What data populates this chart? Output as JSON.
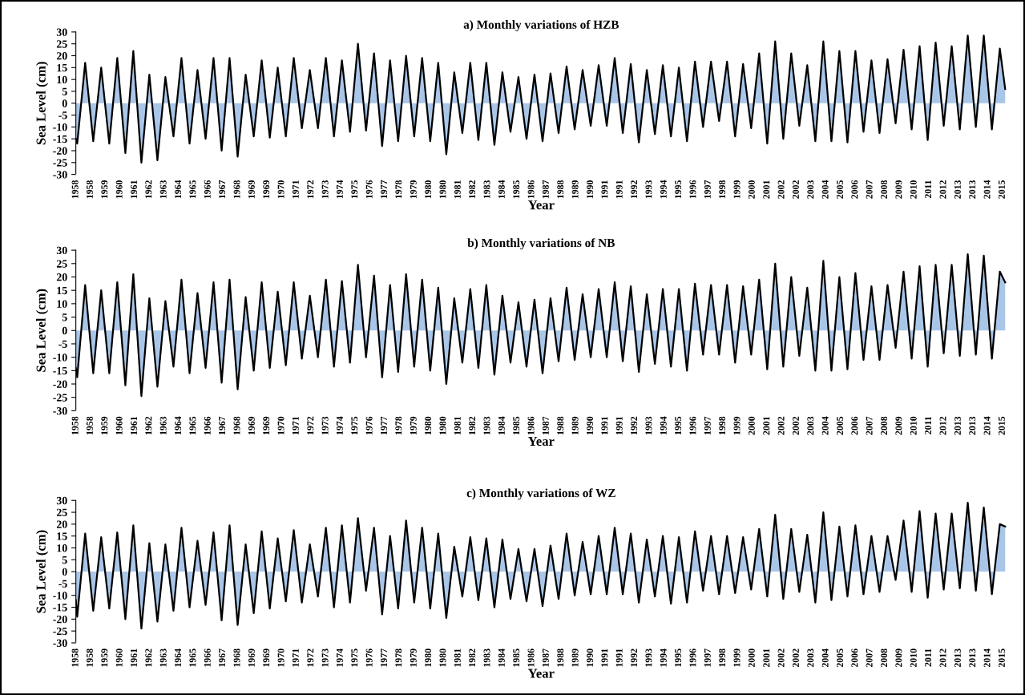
{
  "chart_data": [
    {
      "type": "area",
      "title": "a) Monthly variations of HZB",
      "xlabel": "Year",
      "ylabel": "Sea Level (cm)",
      "x": [
        "1958-01",
        "1958-02",
        "1958-08",
        "1959-02",
        "1959-08",
        "1960-02",
        "1960-08",
        "1961-02",
        "1961-08",
        "1962-02",
        "1962-08",
        "1963-02",
        "1963-08",
        "1964-02",
        "1964-08",
        "1965-02",
        "1965-08",
        "1966-02",
        "1966-08",
        "1967-02",
        "1967-08",
        "1968-02",
        "1968-08",
        "1969-02",
        "1969-08",
        "1970-02",
        "1970-08",
        "1971-02",
        "1971-08",
        "1972-02",
        "1972-08",
        "1973-02",
        "1973-08",
        "1974-02",
        "1974-08",
        "1975-02",
        "1975-08",
        "1976-02",
        "1976-08",
        "1977-02",
        "1977-08",
        "1978-02",
        "1978-08",
        "1979-02",
        "1979-08",
        "1980-02",
        "1980-08",
        "1981-02",
        "1981-08",
        "1982-02",
        "1982-08",
        "1983-02",
        "1983-08",
        "1984-02",
        "1984-08",
        "1985-02",
        "1985-08",
        "1986-02",
        "1986-08",
        "1987-02",
        "1987-08",
        "1988-02",
        "1988-08",
        "1989-02",
        "1989-08",
        "1990-02",
        "1990-08",
        "1991-02",
        "1991-08",
        "1992-02",
        "1992-08",
        "1993-02",
        "1993-08",
        "1994-02",
        "1994-08",
        "1995-02",
        "1995-08",
        "1996-02",
        "1996-08",
        "1997-02",
        "1997-08",
        "1998-02",
        "1998-08",
        "1999-02",
        "1999-08",
        "2000-02",
        "2000-08",
        "2001-02",
        "2001-08",
        "2002-02",
        "2002-08",
        "2003-02",
        "2003-08",
        "2004-02",
        "2004-08",
        "2005-02",
        "2005-08",
        "2006-02",
        "2006-08",
        "2007-02",
        "2007-08",
        "2008-02",
        "2008-08",
        "2009-02",
        "2009-08",
        "2010-02",
        "2010-08",
        "2011-02",
        "2011-08",
        "2012-02",
        "2012-08",
        "2013-02",
        "2013-08",
        "2014-02",
        "2014-08",
        "2015-02",
        "2015-08",
        "2015-12"
      ],
      "series": [
        {
          "color": "#a9c6e8",
          "values": [
            -15,
            -17,
            17,
            -16,
            15,
            -17,
            19,
            -21,
            22,
            -25,
            12,
            -24,
            11,
            -14,
            19,
            -17,
            14,
            -15,
            19,
            -20,
            19,
            -22.5,
            12,
            -14,
            18,
            -14.5,
            15,
            -14,
            19,
            -10.5,
            14,
            -10.5,
            19,
            -14,
            18,
            -12,
            25,
            -11.5,
            21,
            -18,
            18,
            -16,
            20,
            -14,
            19,
            -16,
            17,
            -21.5,
            13,
            -12.5,
            17,
            -15.5,
            17,
            -17.5,
            13,
            -12,
            11,
            -15,
            12,
            -16,
            12.5,
            -12.5,
            15.5,
            -11,
            14,
            -9.5,
            16,
            -9.5,
            19,
            -12.5,
            16.5,
            -16.5,
            14,
            -13,
            16,
            -14,
            15,
            -16,
            17.5,
            -10,
            17.5,
            -7.5,
            17.5,
            -14,
            16.5,
            -10.5,
            21,
            -17,
            26,
            -15,
            21,
            -9.5,
            16,
            -16,
            26,
            -16,
            22,
            -16.5,
            22,
            -12,
            18,
            -12.5,
            18.5,
            -8.5,
            22.5,
            -11,
            24,
            -15.5,
            25.5,
            -9.5,
            24,
            -11,
            28.5,
            -10,
            28.5,
            -11,
            23,
            6
          ]
        }
      ],
      "xlim": [
        "1958-01",
        "2016-01"
      ],
      "xticks": [
        {
          "value": "1958-01",
          "label": "1958"
        },
        {
          "value": "1958-12",
          "label": "1958"
        },
        {
          "value": "1959-11",
          "label": "1959"
        },
        {
          "value": "1960-10",
          "label": "1960"
        },
        {
          "value": "1961-09",
          "label": "1961"
        },
        {
          "value": "1962-08",
          "label": "1962"
        },
        {
          "value": "1963-07",
          "label": "1963"
        },
        {
          "value": "1964-06",
          "label": "1964"
        },
        {
          "value": "1965-05",
          "label": "1965"
        },
        {
          "value": "1966-04",
          "label": "1966"
        },
        {
          "value": "1967-03",
          "label": "1967"
        },
        {
          "value": "1968-02",
          "label": "1968"
        },
        {
          "value": "1969-01",
          "label": "1969"
        },
        {
          "value": "1969-12",
          "label": "1969"
        },
        {
          "value": "1970-11",
          "label": "1970"
        },
        {
          "value": "1971-10",
          "label": "1971"
        },
        {
          "value": "1972-09",
          "label": "1972"
        },
        {
          "value": "1973-08",
          "label": "1973"
        },
        {
          "value": "1974-07",
          "label": "1974"
        },
        {
          "value": "1975-06",
          "label": "1975"
        },
        {
          "value": "1976-05",
          "label": "1976"
        },
        {
          "value": "1977-04",
          "label": "1977"
        },
        {
          "value": "1978-03",
          "label": "1978"
        },
        {
          "value": "1979-02",
          "label": "1979"
        },
        {
          "value": "1980-01",
          "label": "1980"
        },
        {
          "value": "1980-12",
          "label": "1980"
        },
        {
          "value": "1981-11",
          "label": "1981"
        },
        {
          "value": "1982-10",
          "label": "1982"
        },
        {
          "value": "1983-09",
          "label": "1983"
        },
        {
          "value": "1984-08",
          "label": "1984"
        },
        {
          "value": "1985-07",
          "label": "1985"
        },
        {
          "value": "1986-06",
          "label": "1986"
        },
        {
          "value": "1987-05",
          "label": "1987"
        },
        {
          "value": "1988-04",
          "label": "1988"
        },
        {
          "value": "1989-03",
          "label": "1989"
        },
        {
          "value": "1990-02",
          "label": "1990"
        },
        {
          "value": "1991-01",
          "label": "1991"
        },
        {
          "value": "1991-12",
          "label": "1991"
        },
        {
          "value": "1992-11",
          "label": "1992"
        },
        {
          "value": "1993-10",
          "label": "1993"
        },
        {
          "value": "1994-09",
          "label": "1994"
        },
        {
          "value": "1995-08",
          "label": "1995"
        },
        {
          "value": "1996-07",
          "label": "1996"
        },
        {
          "value": "1997-06",
          "label": "1997"
        },
        {
          "value": "1998-05",
          "label": "1998"
        },
        {
          "value": "1999-04",
          "label": "1999"
        },
        {
          "value": "2000-03",
          "label": "2000"
        },
        {
          "value": "2001-02",
          "label": "2001"
        },
        {
          "value": "2002-01",
          "label": "2002"
        },
        {
          "value": "2002-12",
          "label": "2002"
        },
        {
          "value": "2003-11",
          "label": "2003"
        },
        {
          "value": "2004-10",
          "label": "2004"
        },
        {
          "value": "2005-09",
          "label": "2005"
        },
        {
          "value": "2006-08",
          "label": "2006"
        },
        {
          "value": "2007-07",
          "label": "2007"
        },
        {
          "value": "2008-06",
          "label": "2008"
        },
        {
          "value": "2009-05",
          "label": "2009"
        },
        {
          "value": "2010-04",
          "label": "2010"
        },
        {
          "value": "2011-03",
          "label": "2011"
        },
        {
          "value": "2012-02",
          "label": "2012"
        },
        {
          "value": "2013-01",
          "label": "2013"
        },
        {
          "value": "2013-12",
          "label": "2013"
        },
        {
          "value": "2014-11",
          "label": "2014"
        },
        {
          "value": "2015-10",
          "label": "2015"
        }
      ],
      "ylim": [
        -30,
        30
      ],
      "yticks": [
        -30,
        -25,
        -20,
        -15,
        -10,
        -5,
        0,
        5,
        10,
        15,
        20,
        25,
        30
      ]
    },
    {
      "type": "area",
      "title": "b) Monthly variations of NB",
      "xlabel": "Year",
      "ylabel": "Sea Level (cm)",
      "x": [
        "1958-01",
        "1958-02",
        "1958-08",
        "1959-02",
        "1959-08",
        "1960-02",
        "1960-08",
        "1961-02",
        "1961-08",
        "1962-02",
        "1962-08",
        "1963-02",
        "1963-08",
        "1964-02",
        "1964-08",
        "1965-02",
        "1965-08",
        "1966-02",
        "1966-08",
        "1967-02",
        "1967-08",
        "1968-02",
        "1968-08",
        "1969-02",
        "1969-08",
        "1970-02",
        "1970-08",
        "1971-02",
        "1971-08",
        "1972-02",
        "1972-08",
        "1973-02",
        "1973-08",
        "1974-02",
        "1974-08",
        "1975-02",
        "1975-08",
        "1976-02",
        "1976-08",
        "1977-02",
        "1977-08",
        "1978-02",
        "1978-08",
        "1979-02",
        "1979-08",
        "1980-02",
        "1980-08",
        "1981-02",
        "1981-08",
        "1982-02",
        "1982-08",
        "1983-02",
        "1983-08",
        "1984-02",
        "1984-08",
        "1985-02",
        "1985-08",
        "1986-02",
        "1986-08",
        "1987-02",
        "1987-08",
        "1988-02",
        "1988-08",
        "1989-02",
        "1989-08",
        "1990-02",
        "1990-08",
        "1991-02",
        "1991-08",
        "1992-02",
        "1992-08",
        "1993-02",
        "1993-08",
        "1994-02",
        "1994-08",
        "1995-02",
        "1995-08",
        "1996-02",
        "1996-08",
        "1997-02",
        "1997-08",
        "1998-02",
        "1998-08",
        "1999-02",
        "1999-08",
        "2000-02",
        "2000-08",
        "2001-02",
        "2001-08",
        "2002-02",
        "2002-08",
        "2003-02",
        "2003-08",
        "2004-02",
        "2004-08",
        "2005-02",
        "2005-08",
        "2006-02",
        "2006-08",
        "2007-02",
        "2007-08",
        "2008-02",
        "2008-08",
        "2009-02",
        "2009-08",
        "2010-02",
        "2010-08",
        "2011-02",
        "2011-08",
        "2012-02",
        "2012-08",
        "2013-02",
        "2013-08",
        "2014-02",
        "2014-08",
        "2015-02",
        "2015-08",
        "2015-12"
      ],
      "series": [
        {
          "color": "#a9c6e8",
          "values": [
            -14,
            -17.5,
            17,
            -16,
            15,
            -16,
            18,
            -20.5,
            21,
            -24.5,
            12,
            -21,
            11,
            -13.5,
            19,
            -16,
            14,
            -14,
            18,
            -19.5,
            19,
            -22,
            12.5,
            -15,
            18,
            -14,
            14.5,
            -13,
            18,
            -10.5,
            13,
            -10,
            19,
            -13.5,
            18.5,
            -12,
            24.5,
            -10,
            20.5,
            -17.5,
            17,
            -15.5,
            21,
            -13.5,
            19,
            -15,
            16,
            -20,
            12,
            -12,
            15.5,
            -14,
            17,
            -16.5,
            13,
            -12,
            10.5,
            -13.5,
            11.5,
            -16,
            12,
            -11.5,
            16,
            -11,
            13.5,
            -10,
            15.5,
            -10,
            18,
            -11.5,
            16.5,
            -15.5,
            13.5,
            -12.5,
            15.5,
            -13.5,
            15.5,
            -15,
            17.5,
            -9,
            17,
            -9,
            17,
            -12,
            16.5,
            -9,
            19,
            -14.5,
            25,
            -13.5,
            20,
            -9.5,
            16,
            -15,
            26,
            -15,
            20,
            -14.5,
            21.5,
            -11,
            16.5,
            -11,
            17,
            -6.5,
            22,
            -10.5,
            24,
            -13.5,
            24.5,
            -8.5,
            24.5,
            -9.5,
            28.5,
            -9,
            28,
            -10.5,
            22,
            18
          ]
        }
      ],
      "xlim": [
        "1958-01",
        "2016-01"
      ],
      "xticks": [
        {
          "value": "1958-01",
          "label": "1958"
        },
        {
          "value": "1958-12",
          "label": "1958"
        },
        {
          "value": "1959-11",
          "label": "1959"
        },
        {
          "value": "1960-10",
          "label": "1960"
        },
        {
          "value": "1961-09",
          "label": "1961"
        },
        {
          "value": "1962-08",
          "label": "1962"
        },
        {
          "value": "1963-07",
          "label": "1963"
        },
        {
          "value": "1964-06",
          "label": "1964"
        },
        {
          "value": "1965-05",
          "label": "1965"
        },
        {
          "value": "1966-04",
          "label": "1966"
        },
        {
          "value": "1967-03",
          "label": "1967"
        },
        {
          "value": "1968-02",
          "label": "1968"
        },
        {
          "value": "1969-01",
          "label": "1969"
        },
        {
          "value": "1969-12",
          "label": "1969"
        },
        {
          "value": "1970-11",
          "label": "1970"
        },
        {
          "value": "1971-10",
          "label": "1971"
        },
        {
          "value": "1972-09",
          "label": "1972"
        },
        {
          "value": "1973-08",
          "label": "1973"
        },
        {
          "value": "1974-07",
          "label": "1974"
        },
        {
          "value": "1975-06",
          "label": "1975"
        },
        {
          "value": "1976-05",
          "label": "1976"
        },
        {
          "value": "1977-04",
          "label": "1977"
        },
        {
          "value": "1978-03",
          "label": "1978"
        },
        {
          "value": "1979-02",
          "label": "1979"
        },
        {
          "value": "1980-01",
          "label": "1980"
        },
        {
          "value": "1980-12",
          "label": "1980"
        },
        {
          "value": "1981-11",
          "label": "1981"
        },
        {
          "value": "1982-10",
          "label": "1982"
        },
        {
          "value": "1983-09",
          "label": "1983"
        },
        {
          "value": "1984-08",
          "label": "1984"
        },
        {
          "value": "1985-07",
          "label": "1985"
        },
        {
          "value": "1986-06",
          "label": "1986"
        },
        {
          "value": "1987-05",
          "label": "1987"
        },
        {
          "value": "1988-04",
          "label": "1988"
        },
        {
          "value": "1989-03",
          "label": "1989"
        },
        {
          "value": "1990-02",
          "label": "1990"
        },
        {
          "value": "1991-01",
          "label": "1991"
        },
        {
          "value": "1991-12",
          "label": "1991"
        },
        {
          "value": "1992-11",
          "label": "1992"
        },
        {
          "value": "1993-10",
          "label": "1993"
        },
        {
          "value": "1994-09",
          "label": "1994"
        },
        {
          "value": "1995-08",
          "label": "1995"
        },
        {
          "value": "1996-07",
          "label": "1996"
        },
        {
          "value": "1997-06",
          "label": "1997"
        },
        {
          "value": "1998-05",
          "label": "1998"
        },
        {
          "value": "1999-04",
          "label": "1999"
        },
        {
          "value": "2000-03",
          "label": "2000"
        },
        {
          "value": "2001-02",
          "label": "2001"
        },
        {
          "value": "2002-01",
          "label": "2002"
        },
        {
          "value": "2002-12",
          "label": "2002"
        },
        {
          "value": "2003-11",
          "label": "2003"
        },
        {
          "value": "2004-10",
          "label": "2004"
        },
        {
          "value": "2005-09",
          "label": "2005"
        },
        {
          "value": "2006-08",
          "label": "2006"
        },
        {
          "value": "2007-07",
          "label": "2007"
        },
        {
          "value": "2008-06",
          "label": "2008"
        },
        {
          "value": "2009-05",
          "label": "2009"
        },
        {
          "value": "2010-04",
          "label": "2010"
        },
        {
          "value": "2011-03",
          "label": "2011"
        },
        {
          "value": "2012-02",
          "label": "2012"
        },
        {
          "value": "2013-01",
          "label": "2013"
        },
        {
          "value": "2013-12",
          "label": "2013"
        },
        {
          "value": "2014-11",
          "label": "2014"
        },
        {
          "value": "2015-10",
          "label": "2015"
        }
      ],
      "ylim": [
        -30,
        30
      ],
      "yticks": [
        -30,
        -25,
        -20,
        -15,
        -10,
        -5,
        0,
        5,
        10,
        15,
        20,
        25,
        30
      ]
    },
    {
      "type": "area",
      "title": "c) Monthly variations of WZ",
      "xlabel": "Year",
      "ylabel": "Sea Level (cm)",
      "x": [
        "1958-01",
        "1958-02",
        "1958-08",
        "1959-02",
        "1959-08",
        "1960-02",
        "1960-08",
        "1961-02",
        "1961-08",
        "1962-02",
        "1962-08",
        "1963-02",
        "1963-08",
        "1964-02",
        "1964-08",
        "1965-02",
        "1965-08",
        "1966-02",
        "1966-08",
        "1967-02",
        "1967-08",
        "1968-02",
        "1968-08",
        "1969-02",
        "1969-08",
        "1970-02",
        "1970-08",
        "1971-02",
        "1971-08",
        "1972-02",
        "1972-08",
        "1973-02",
        "1973-08",
        "1974-02",
        "1974-08",
        "1975-02",
        "1975-08",
        "1976-02",
        "1976-08",
        "1977-02",
        "1977-08",
        "1978-02",
        "1978-08",
        "1979-02",
        "1979-08",
        "1980-02",
        "1980-08",
        "1981-02",
        "1981-08",
        "1982-02",
        "1982-08",
        "1983-02",
        "1983-08",
        "1984-02",
        "1984-08",
        "1985-02",
        "1985-08",
        "1986-02",
        "1986-08",
        "1987-02",
        "1987-08",
        "1988-02",
        "1988-08",
        "1989-02",
        "1989-08",
        "1990-02",
        "1990-08",
        "1991-02",
        "1991-08",
        "1992-02",
        "1992-08",
        "1993-02",
        "1993-08",
        "1994-02",
        "1994-08",
        "1995-02",
        "1995-08",
        "1996-02",
        "1996-08",
        "1997-02",
        "1997-08",
        "1998-02",
        "1998-08",
        "1999-02",
        "1999-08",
        "2000-02",
        "2000-08",
        "2001-02",
        "2001-08",
        "2002-02",
        "2002-08",
        "2003-02",
        "2003-08",
        "2004-02",
        "2004-08",
        "2005-02",
        "2005-08",
        "2006-02",
        "2006-08",
        "2007-02",
        "2007-08",
        "2008-02",
        "2008-08",
        "2009-02",
        "2009-08",
        "2010-02",
        "2010-08",
        "2011-02",
        "2011-08",
        "2012-02",
        "2012-08",
        "2013-02",
        "2013-08",
        "2014-02",
        "2014-08",
        "2015-02",
        "2015-08",
        "2015-12"
      ],
      "series": [
        {
          "color": "#a9c6e8",
          "values": [
            -12,
            -19,
            16,
            -16.5,
            14.5,
            -15.5,
            16.5,
            -20,
            19.5,
            -24,
            12,
            -21,
            11.5,
            -16.5,
            18.5,
            -15,
            13,
            -14,
            16.5,
            -20.5,
            19.5,
            -22.5,
            11.5,
            -17.5,
            17,
            -15.5,
            14,
            -12.5,
            17.5,
            -13,
            11.5,
            -10.5,
            18.5,
            -15,
            19.5,
            -13,
            22.5,
            -8,
            18.5,
            -18,
            15,
            -15.5,
            21.5,
            -13,
            18.5,
            -15.5,
            16,
            -19.5,
            10.5,
            -10.5,
            14.5,
            -12,
            14,
            -15,
            13.5,
            -11.5,
            9.5,
            -12.5,
            9.5,
            -14.5,
            11,
            -11.5,
            16,
            -10,
            12.5,
            -9.5,
            15,
            -9.5,
            18.5,
            -9.5,
            16,
            -13,
            13.5,
            -10.5,
            15,
            -13.5,
            14.5,
            -13,
            17,
            -8,
            15,
            -9.5,
            15,
            -9,
            14.5,
            -7.5,
            18,
            -10.5,
            24,
            -11.5,
            18,
            -8.5,
            15.5,
            -13,
            25,
            -12,
            19,
            -10.5,
            19.5,
            -9.5,
            15,
            -8.5,
            15,
            -3.5,
            21.5,
            -8.5,
            25.5,
            -11,
            24.5,
            -7.5,
            24.5,
            -7,
            29,
            -8,
            27,
            -9.5,
            20,
            19
          ]
        }
      ],
      "xlim": [
        "1958-01",
        "2016-01"
      ],
      "xticks": [
        {
          "value": "1958-01",
          "label": "1958"
        },
        {
          "value": "1958-12",
          "label": "1958"
        },
        {
          "value": "1959-11",
          "label": "1959"
        },
        {
          "value": "1960-10",
          "label": "1960"
        },
        {
          "value": "1961-09",
          "label": "1961"
        },
        {
          "value": "1962-08",
          "label": "1962"
        },
        {
          "value": "1963-07",
          "label": "1963"
        },
        {
          "value": "1964-06",
          "label": "1964"
        },
        {
          "value": "1965-05",
          "label": "1965"
        },
        {
          "value": "1966-04",
          "label": "1966"
        },
        {
          "value": "1967-03",
          "label": "1967"
        },
        {
          "value": "1968-02",
          "label": "1968"
        },
        {
          "value": "1969-01",
          "label": "1969"
        },
        {
          "value": "1969-12",
          "label": "1969"
        },
        {
          "value": "1970-11",
          "label": "1970"
        },
        {
          "value": "1971-10",
          "label": "1971"
        },
        {
          "value": "1972-09",
          "label": "1972"
        },
        {
          "value": "1973-08",
          "label": "1973"
        },
        {
          "value": "1974-07",
          "label": "1974"
        },
        {
          "value": "1975-06",
          "label": "1975"
        },
        {
          "value": "1976-05",
          "label": "1976"
        },
        {
          "value": "1977-04",
          "label": "1977"
        },
        {
          "value": "1978-03",
          "label": "1978"
        },
        {
          "value": "1979-02",
          "label": "1979"
        },
        {
          "value": "1980-01",
          "label": "1980"
        },
        {
          "value": "1980-12",
          "label": "1980"
        },
        {
          "value": "1981-11",
          "label": "1981"
        },
        {
          "value": "1982-10",
          "label": "1982"
        },
        {
          "value": "1983-09",
          "label": "1983"
        },
        {
          "value": "1984-08",
          "label": "1984"
        },
        {
          "value": "1985-07",
          "label": "1985"
        },
        {
          "value": "1986-06",
          "label": "1986"
        },
        {
          "value": "1987-05",
          "label": "1987"
        },
        {
          "value": "1988-04",
          "label": "1988"
        },
        {
          "value": "1989-03",
          "label": "1989"
        },
        {
          "value": "1990-02",
          "label": "1990"
        },
        {
          "value": "1991-01",
          "label": "1991"
        },
        {
          "value": "1991-12",
          "label": "1991"
        },
        {
          "value": "1992-11",
          "label": "1992"
        },
        {
          "value": "1993-10",
          "label": "1993"
        },
        {
          "value": "1994-09",
          "label": "1994"
        },
        {
          "value": "1995-08",
          "label": "1995"
        },
        {
          "value": "1996-07",
          "label": "1996"
        },
        {
          "value": "1997-06",
          "label": "1997"
        },
        {
          "value": "1998-05",
          "label": "1998"
        },
        {
          "value": "1999-04",
          "label": "1999"
        },
        {
          "value": "2000-03",
          "label": "2000"
        },
        {
          "value": "2001-02",
          "label": "2001"
        },
        {
          "value": "2002-01",
          "label": "2002"
        },
        {
          "value": "2002-12",
          "label": "2002"
        },
        {
          "value": "2003-11",
          "label": "2003"
        },
        {
          "value": "2004-10",
          "label": "2004"
        },
        {
          "value": "2005-09",
          "label": "2005"
        },
        {
          "value": "2006-08",
          "label": "2006"
        },
        {
          "value": "2007-07",
          "label": "2007"
        },
        {
          "value": "2008-06",
          "label": "2008"
        },
        {
          "value": "2009-05",
          "label": "2009"
        },
        {
          "value": "2010-04",
          "label": "2010"
        },
        {
          "value": "2011-03",
          "label": "2011"
        },
        {
          "value": "2012-02",
          "label": "2012"
        },
        {
          "value": "2013-01",
          "label": "2013"
        },
        {
          "value": "2013-12",
          "label": "2013"
        },
        {
          "value": "2014-11",
          "label": "2014"
        },
        {
          "value": "2015-10",
          "label": "2015"
        }
      ],
      "ylim": [
        -30,
        30
      ],
      "yticks": [
        -30,
        -25,
        -20,
        -15,
        -10,
        -5,
        0,
        5,
        10,
        15,
        20,
        25,
        30
      ]
    }
  ]
}
